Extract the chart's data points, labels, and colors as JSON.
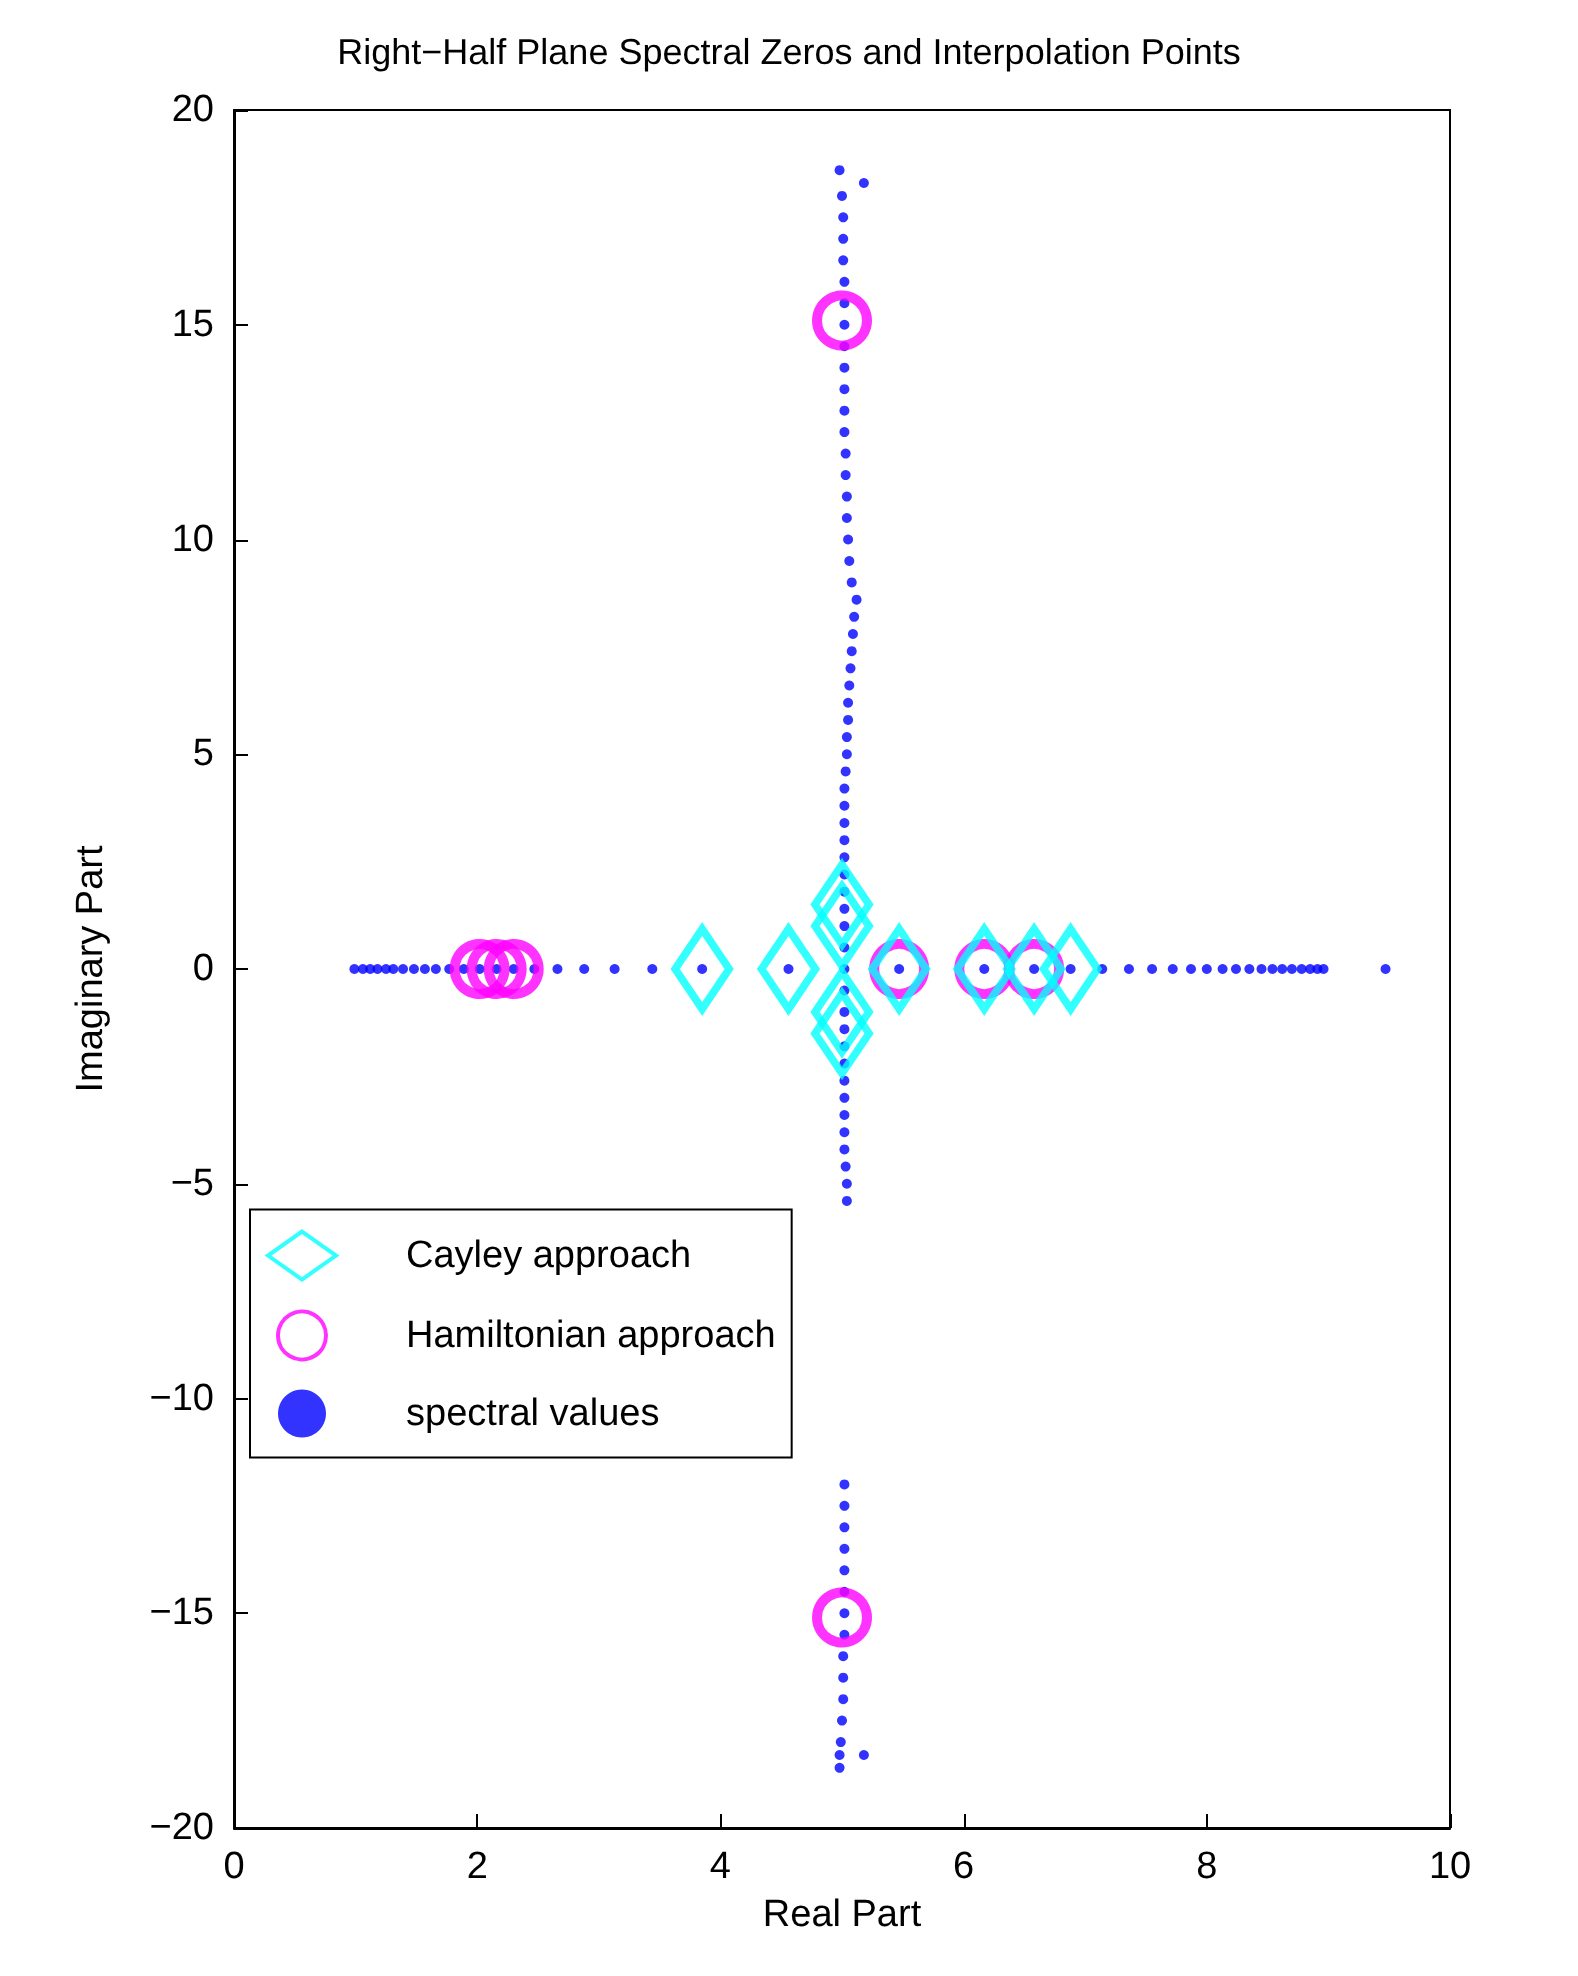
{
  "chart_data": {
    "type": "scatter",
    "title": "Right−Half Plane Spectral Zeros and Interpolation Points",
    "xlabel": "Real Part",
    "ylabel": "Imaginary Part",
    "xlim": [
      0,
      10
    ],
    "xticks": [
      0,
      2,
      4,
      6,
      8,
      10
    ],
    "ylim": [
      -20,
      20
    ],
    "yticks": [
      -20,
      -15,
      -10,
      -5,
      0,
      5,
      10,
      15,
      20
    ],
    "legend": "left",
    "series": [
      {
        "name": "Cayley approach",
        "color": "#00ffff",
        "marker": "diamond",
        "x": [
          3.85,
          4.56,
          5.47,
          6.17,
          6.58,
          6.88,
          5.0,
          5.0,
          5.0,
          5.0
        ],
        "values": [
          0,
          0,
          0,
          0,
          0,
          0,
          1.5,
          1.0,
          -1.0,
          -1.5
        ]
      },
      {
        "name": "Hamiltonian approach",
        "color": "#ff00ff",
        "marker": "circle",
        "x": [
          2.02,
          2.16,
          2.3,
          5.47,
          6.17,
          6.58,
          5.0,
          5.0
        ],
        "values": [
          0,
          0,
          0,
          0,
          0,
          0,
          15.1,
          -15.1
        ]
      },
      {
        "name": "spectral values",
        "color": "#0000ff",
        "marker": "point",
        "x": [
          0.99,
          1.06,
          1.12,
          1.18,
          1.25,
          1.31,
          1.39,
          1.48,
          1.57,
          1.66,
          1.77,
          1.89,
          2.02,
          2.16,
          2.3,
          2.47,
          2.66,
          2.88,
          3.13,
          3.44,
          3.85,
          4.56,
          5.02,
          5.47,
          6.17,
          6.58,
          6.88,
          7.14,
          7.36,
          7.55,
          7.72,
          7.87,
          8.0,
          8.13,
          8.24,
          8.35,
          8.45,
          8.54,
          8.62,
          8.7,
          8.78,
          8.85,
          8.91,
          8.96,
          9.47,
          5.02,
          5.02,
          5.02,
          5.02,
          5.02,
          5.02,
          5.02,
          5.02,
          5.02,
          5.02,
          5.03,
          5.04,
          5.04,
          5.05,
          5.05,
          5.06,
          5.07,
          5.08,
          5.09,
          5.1,
          5.12,
          5.08,
          5.06,
          5.05,
          5.04,
          5.04,
          5.03,
          5.03,
          5.02,
          5.02,
          5.02,
          5.02,
          5.02,
          5.02,
          5.02,
          5.02,
          5.01,
          5.01,
          5.01,
          5.0,
          4.98,
          5.18,
          5.02,
          5.02,
          5.02,
          5.02,
          5.02,
          5.02,
          5.02,
          5.02,
          5.02,
          5.02,
          5.03,
          5.04,
          5.04,
          5.02,
          5.02,
          5.02,
          5.02,
          5.02,
          5.02,
          5.02,
          5.02,
          5.01,
          5.01,
          5.01,
          5.0,
          4.99,
          4.98,
          4.98,
          5.18
        ],
        "values": [
          0,
          0,
          0,
          0,
          0,
          0,
          0,
          0,
          0,
          0,
          0,
          0,
          0,
          0,
          0,
          0,
          0,
          0,
          0,
          0,
          0,
          0,
          0,
          0,
          0,
          0,
          0,
          0,
          0,
          0,
          0,
          0,
          0,
          0,
          0,
          0,
          0,
          0,
          0,
          0,
          0,
          0,
          0,
          0,
          0,
          0.5,
          1.0,
          1.4,
          1.8,
          2.2,
          2.6,
          3.0,
          3.4,
          3.8,
          4.2,
          4.6,
          5.0,
          5.4,
          5.8,
          6.2,
          6.6,
          7.0,
          7.4,
          7.8,
          8.2,
          8.6,
          9.0,
          9.5,
          10.0,
          10.5,
          11.0,
          11.5,
          12.0,
          12.5,
          13.0,
          13.5,
          14.0,
          14.5,
          15.0,
          15.5,
          16.0,
          16.5,
          17.0,
          17.5,
          18.0,
          18.6,
          18.3,
          -0.5,
          -1.0,
          -1.4,
          -1.8,
          -2.2,
          -2.6,
          -3.0,
          -3.4,
          -3.8,
          -4.2,
          -4.6,
          -5.0,
          -5.4,
          -12.0,
          -12.5,
          -13.0,
          -13.5,
          -14.0,
          -14.5,
          -15.0,
          -15.5,
          -16.0,
          -16.5,
          -17.0,
          -17.5,
          -18.0,
          -18.3,
          -18.6,
          -18.3
        ]
      }
    ]
  }
}
